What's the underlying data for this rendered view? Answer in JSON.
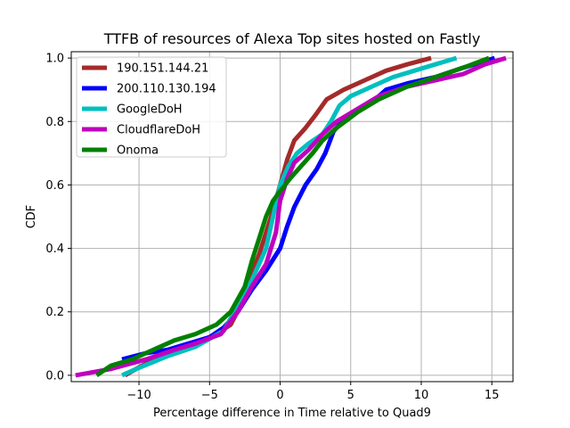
{
  "chart_data": {
    "type": "line",
    "title": "TTFB of resources of Alexa Top sites hosted on Fastly",
    "xlabel": "Percentage difference in Time relative to Quad9",
    "ylabel": "CDF",
    "xlim": [
      -14.8,
      16.5
    ],
    "ylim": [
      -0.02,
      1.02
    ],
    "xticks": [
      -10,
      -5,
      0,
      5,
      10,
      15
    ],
    "yticks": [
      0.0,
      0.2,
      0.4,
      0.6,
      0.8,
      1.0
    ],
    "xtick_labels": [
      "−10",
      "−5",
      "0",
      "5",
      "10",
      "15"
    ],
    "ytick_labels": [
      "0.0",
      "0.2",
      "0.4",
      "0.6",
      "0.8",
      "1.0"
    ],
    "grid": true,
    "legend_position": "top-left",
    "series": [
      {
        "name": "190.151.144.21",
        "color": "#a52a2a",
        "points": [
          [
            -11.0,
            0.0
          ],
          [
            -9.8,
            0.03
          ],
          [
            -8.0,
            0.07
          ],
          [
            -6.0,
            0.1
          ],
          [
            -4.5,
            0.13
          ],
          [
            -3.5,
            0.16
          ],
          [
            -2.8,
            0.22
          ],
          [
            -2.2,
            0.3
          ],
          [
            -1.5,
            0.38
          ],
          [
            -1.0,
            0.45
          ],
          [
            -0.5,
            0.52
          ],
          [
            0.0,
            0.6
          ],
          [
            0.5,
            0.68
          ],
          [
            1.0,
            0.74
          ],
          [
            1.8,
            0.78
          ],
          [
            2.5,
            0.82
          ],
          [
            3.3,
            0.87
          ],
          [
            4.5,
            0.9
          ],
          [
            6.0,
            0.93
          ],
          [
            7.5,
            0.96
          ],
          [
            9.0,
            0.98
          ],
          [
            10.7,
            1.0
          ]
        ]
      },
      {
        "name": "200.110.130.194",
        "color": "#0000ff",
        "points": [
          [
            -11.2,
            0.05
          ],
          [
            -9.5,
            0.07
          ],
          [
            -8.0,
            0.08
          ],
          [
            -6.5,
            0.1
          ],
          [
            -5.0,
            0.12
          ],
          [
            -4.0,
            0.15
          ],
          [
            -3.0,
            0.2
          ],
          [
            -2.0,
            0.27
          ],
          [
            -1.0,
            0.33
          ],
          [
            0.0,
            0.4
          ],
          [
            0.5,
            0.47
          ],
          [
            1.0,
            0.53
          ],
          [
            1.8,
            0.6
          ],
          [
            2.6,
            0.65
          ],
          [
            3.2,
            0.7
          ],
          [
            3.8,
            0.77
          ],
          [
            4.8,
            0.82
          ],
          [
            6.5,
            0.86
          ],
          [
            7.5,
            0.9
          ],
          [
            9.0,
            0.92
          ],
          [
            11.0,
            0.94
          ],
          [
            13.0,
            0.97
          ],
          [
            15.2,
            1.0
          ]
        ]
      },
      {
        "name": "GoogleDoH",
        "color": "#00bfbf",
        "points": [
          [
            -11.2,
            0.0
          ],
          [
            -10.2,
            0.02
          ],
          [
            -8.0,
            0.06
          ],
          [
            -6.0,
            0.09
          ],
          [
            -4.0,
            0.14
          ],
          [
            -3.0,
            0.22
          ],
          [
            -2.0,
            0.3
          ],
          [
            -1.0,
            0.4
          ],
          [
            -0.5,
            0.5
          ],
          [
            0.0,
            0.6
          ],
          [
            0.6,
            0.66
          ],
          [
            1.2,
            0.7
          ],
          [
            2.0,
            0.73
          ],
          [
            3.0,
            0.76
          ],
          [
            3.6,
            0.8
          ],
          [
            4.2,
            0.85
          ],
          [
            5.0,
            0.88
          ],
          [
            6.5,
            0.91
          ],
          [
            8.0,
            0.94
          ],
          [
            9.5,
            0.96
          ],
          [
            11.0,
            0.98
          ],
          [
            12.5,
            1.0
          ]
        ]
      },
      {
        "name": "CloudflareDoH",
        "color": "#bf00bf",
        "points": [
          [
            -14.5,
            0.0
          ],
          [
            -12.0,
            0.02
          ],
          [
            -9.5,
            0.05
          ],
          [
            -7.5,
            0.08
          ],
          [
            -6.0,
            0.1
          ],
          [
            -4.2,
            0.13
          ],
          [
            -3.0,
            0.2
          ],
          [
            -2.0,
            0.28
          ],
          [
            -1.0,
            0.35
          ],
          [
            -0.3,
            0.45
          ],
          [
            0.0,
            0.55
          ],
          [
            0.5,
            0.62
          ],
          [
            1.0,
            0.67
          ],
          [
            2.0,
            0.71
          ],
          [
            3.0,
            0.76
          ],
          [
            4.0,
            0.8
          ],
          [
            5.5,
            0.84
          ],
          [
            7.0,
            0.88
          ],
          [
            9.0,
            0.91
          ],
          [
            11.0,
            0.93
          ],
          [
            13.0,
            0.95
          ],
          [
            14.5,
            0.98
          ],
          [
            16.0,
            1.0
          ]
        ]
      },
      {
        "name": "Onoma",
        "color": "#008000",
        "points": [
          [
            -13.0,
            0.0
          ],
          [
            -12.0,
            0.03
          ],
          [
            -10.5,
            0.05
          ],
          [
            -9.0,
            0.08
          ],
          [
            -7.5,
            0.11
          ],
          [
            -6.0,
            0.13
          ],
          [
            -4.5,
            0.16
          ],
          [
            -3.5,
            0.2
          ],
          [
            -2.5,
            0.28
          ],
          [
            -2.0,
            0.36
          ],
          [
            -1.5,
            0.43
          ],
          [
            -1.0,
            0.5
          ],
          [
            -0.5,
            0.55
          ],
          [
            0.0,
            0.58
          ],
          [
            0.7,
            0.62
          ],
          [
            1.5,
            0.66
          ],
          [
            2.3,
            0.7
          ],
          [
            3.0,
            0.74
          ],
          [
            4.0,
            0.78
          ],
          [
            5.5,
            0.83
          ],
          [
            7.0,
            0.87
          ],
          [
            9.0,
            0.91
          ],
          [
            11.0,
            0.94
          ],
          [
            13.0,
            0.97
          ],
          [
            14.8,
            1.0
          ]
        ]
      }
    ]
  }
}
